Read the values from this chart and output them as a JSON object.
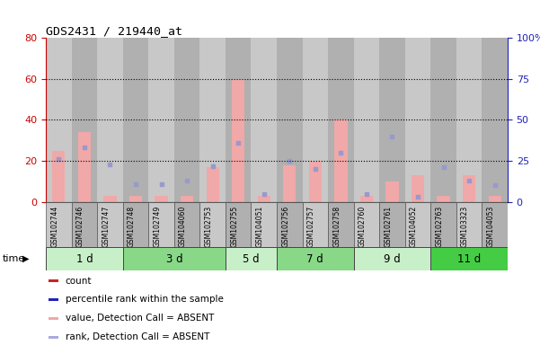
{
  "title": "GDS2431 / 219440_at",
  "samples": [
    "GSM102744",
    "GSM102746",
    "GSM102747",
    "GSM102748",
    "GSM102749",
    "GSM104060",
    "GSM102753",
    "GSM102755",
    "GSM104051",
    "GSM102756",
    "GSM102757",
    "GSM102758",
    "GSM102760",
    "GSM102761",
    "GSM104052",
    "GSM102763",
    "GSM103323",
    "GSM104053"
  ],
  "groups": [
    {
      "label": "1 d",
      "indices": [
        0,
        1,
        2
      ],
      "color": "#c8f0c8"
    },
    {
      "label": "3 d",
      "indices": [
        3,
        4,
        5,
        6
      ],
      "color": "#88d888"
    },
    {
      "label": "5 d",
      "indices": [
        7,
        8
      ],
      "color": "#c8f0c8"
    },
    {
      "label": "7 d",
      "indices": [
        9,
        10,
        11
      ],
      "color": "#88d888"
    },
    {
      "label": "9 d",
      "indices": [
        12,
        13,
        14
      ],
      "color": "#c8f0c8"
    },
    {
      "label": "11 d",
      "indices": [
        15,
        16,
        17
      ],
      "color": "#44cc44"
    }
  ],
  "pink_bars": [
    25,
    34,
    3,
    3,
    3,
    3,
    17,
    60,
    3,
    18,
    20,
    40,
    3,
    10,
    13,
    3,
    13,
    3
  ],
  "blue_squares": [
    26,
    33,
    23,
    11,
    11,
    13,
    22,
    36,
    5,
    25,
    20,
    30,
    5,
    40,
    3,
    21,
    13,
    10
  ],
  "left_ylim": [
    0,
    80
  ],
  "right_ylim": [
    0,
    100
  ],
  "left_yticks": [
    0,
    20,
    40,
    60,
    80
  ],
  "right_yticks": [
    0,
    25,
    50,
    75,
    100
  ],
  "right_yticklabels": [
    "0",
    "25",
    "50",
    "75",
    "100%"
  ],
  "left_color": "#cc0000",
  "right_color": "#2222bb",
  "bg_color": "#ffffff",
  "col_bg_odd": "#c8c8c8",
  "col_bg_even": "#b0b0b0",
  "bar_color_pink": "#f0a8a8",
  "dot_color_blue": "#9999cc",
  "legend_items": [
    {
      "color": "#cc2222",
      "label": "count"
    },
    {
      "color": "#2222bb",
      "label": "percentile rank within the sample"
    },
    {
      "color": "#f0a8a8",
      "label": "value, Detection Call = ABSENT"
    },
    {
      "color": "#aaaadd",
      "label": "rank, Detection Call = ABSENT"
    }
  ]
}
